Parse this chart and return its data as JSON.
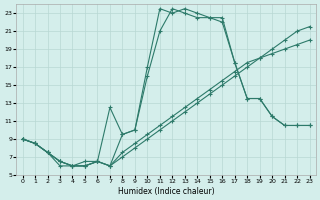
{
  "xlabel": "Humidex (Indice chaleur)",
  "bg_color": "#d4eeeb",
  "grid_color": "#b8d8d4",
  "line_color": "#2d7a6a",
  "xlim": [
    -0.5,
    23.5
  ],
  "ylim": [
    5,
    24
  ],
  "yticks": [
    5,
    7,
    9,
    11,
    13,
    15,
    17,
    19,
    21,
    23
  ],
  "xticks": [
    0,
    1,
    2,
    3,
    4,
    5,
    6,
    7,
    8,
    9,
    10,
    11,
    12,
    13,
    14,
    15,
    16,
    17,
    18,
    19,
    20,
    21,
    22,
    23
  ],
  "lines": [
    {
      "x": [
        0,
        1,
        2,
        3,
        4,
        5,
        6,
        7,
        8,
        9,
        10,
        11,
        12,
        13,
        14,
        15,
        16,
        17,
        18,
        19,
        20,
        21,
        22,
        23
      ],
      "y": [
        9.0,
        8.5,
        7.5,
        6.0,
        6.0,
        6.5,
        6.5,
        6.0,
        7.0,
        8.0,
        9.0,
        10.0,
        11.0,
        12.0,
        13.0,
        14.0,
        15.0,
        16.0,
        17.0,
        18.0,
        19.0,
        20.0,
        21.0,
        21.5
      ]
    },
    {
      "x": [
        0,
        1,
        2,
        3,
        4,
        5,
        6,
        7,
        8,
        9,
        10,
        11,
        12,
        13,
        14,
        15,
        16,
        17,
        18,
        19,
        20,
        21,
        22,
        23
      ],
      "y": [
        9.0,
        8.5,
        7.5,
        6.5,
        6.0,
        6.0,
        6.5,
        6.0,
        7.5,
        8.5,
        9.5,
        10.5,
        11.5,
        12.5,
        13.5,
        14.5,
        15.5,
        16.5,
        17.5,
        18.0,
        18.5,
        19.0,
        19.5,
        20.0
      ]
    },
    {
      "x": [
        0,
        1,
        2,
        3,
        4,
        5,
        6,
        7,
        8,
        9,
        10,
        11,
        12,
        13,
        14,
        15,
        16,
        17,
        18,
        19,
        20,
        21,
        22,
        23
      ],
      "y": [
        9.0,
        8.5,
        7.5,
        6.5,
        6.0,
        6.0,
        6.5,
        12.5,
        9.5,
        10.0,
        16.0,
        21.0,
        23.5,
        23.0,
        22.5,
        22.5,
        22.5,
        17.5,
        13.5,
        13.5,
        11.5,
        10.5,
        10.5,
        10.5
      ]
    },
    {
      "x": [
        0,
        1,
        2,
        3,
        4,
        5,
        6,
        7,
        8,
        9,
        10,
        11,
        12,
        13,
        14,
        15,
        16,
        17,
        18,
        19,
        20,
        21,
        22,
        23
      ],
      "y": [
        9.0,
        8.5,
        7.5,
        6.5,
        6.0,
        6.0,
        6.5,
        6.0,
        9.5,
        10.0,
        17.0,
        23.5,
        23.0,
        23.5,
        23.0,
        22.5,
        22.0,
        17.5,
        13.5,
        13.5,
        11.5,
        10.5,
        10.5,
        10.5
      ]
    }
  ]
}
